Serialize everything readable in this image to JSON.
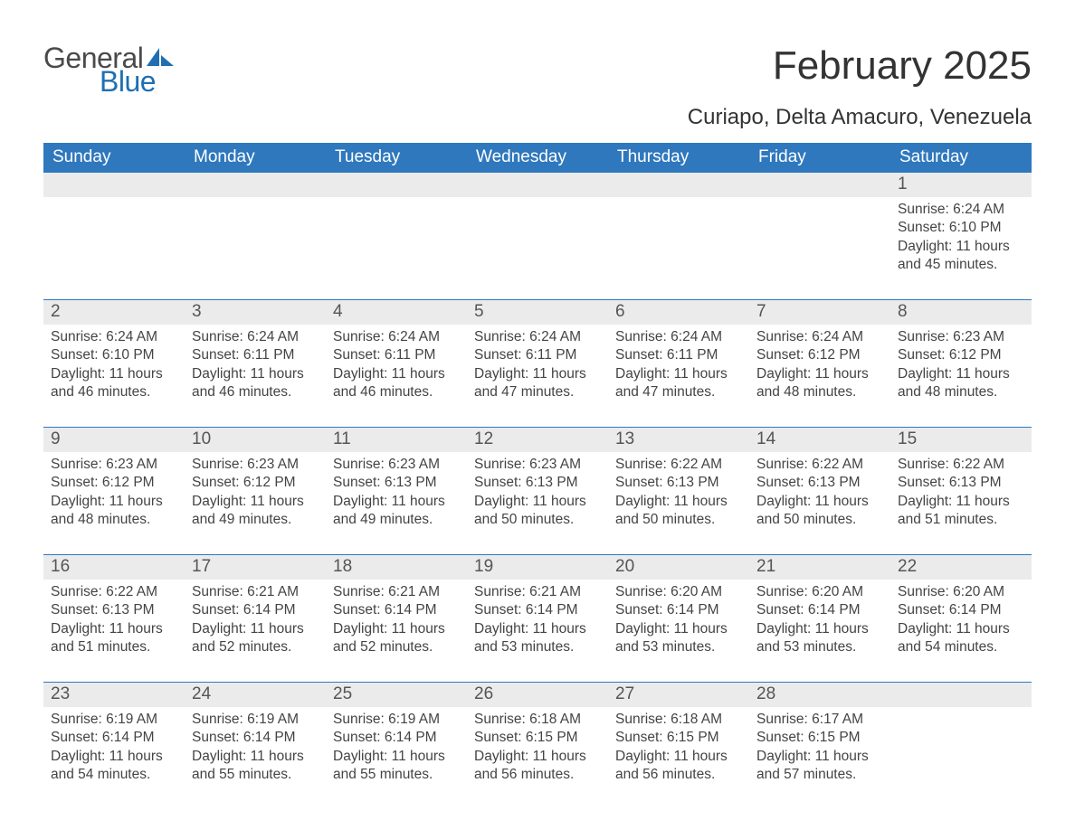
{
  "logo": {
    "word1": "General",
    "word2": "Blue",
    "word1_color": "#4a4a4a",
    "word2_color": "#1f6fb2",
    "sail_color": "#1f6fb2"
  },
  "title": "February 2025",
  "location": "Curiapo, Delta Amacuro, Venezuela",
  "colors": {
    "header_bg": "#2f78bd",
    "header_text": "#ffffff",
    "date_bar_bg": "#ebebeb",
    "date_text": "#555555",
    "body_text": "#444444",
    "page_bg": "#ffffff",
    "week_border": "#2f78bd"
  },
  "day_headers": [
    "Sunday",
    "Monday",
    "Tuesday",
    "Wednesday",
    "Thursday",
    "Friday",
    "Saturday"
  ],
  "weeks": [
    [
      {
        "date": "",
        "sunrise": "",
        "sunset": "",
        "daylight": ""
      },
      {
        "date": "",
        "sunrise": "",
        "sunset": "",
        "daylight": ""
      },
      {
        "date": "",
        "sunrise": "",
        "sunset": "",
        "daylight": ""
      },
      {
        "date": "",
        "sunrise": "",
        "sunset": "",
        "daylight": ""
      },
      {
        "date": "",
        "sunrise": "",
        "sunset": "",
        "daylight": ""
      },
      {
        "date": "",
        "sunrise": "",
        "sunset": "",
        "daylight": ""
      },
      {
        "date": "1",
        "sunrise": "Sunrise: 6:24 AM",
        "sunset": "Sunset: 6:10 PM",
        "daylight": "Daylight: 11 hours and 45 minutes."
      }
    ],
    [
      {
        "date": "2",
        "sunrise": "Sunrise: 6:24 AM",
        "sunset": "Sunset: 6:10 PM",
        "daylight": "Daylight: 11 hours and 46 minutes."
      },
      {
        "date": "3",
        "sunrise": "Sunrise: 6:24 AM",
        "sunset": "Sunset: 6:11 PM",
        "daylight": "Daylight: 11 hours and 46 minutes."
      },
      {
        "date": "4",
        "sunrise": "Sunrise: 6:24 AM",
        "sunset": "Sunset: 6:11 PM",
        "daylight": "Daylight: 11 hours and 46 minutes."
      },
      {
        "date": "5",
        "sunrise": "Sunrise: 6:24 AM",
        "sunset": "Sunset: 6:11 PM",
        "daylight": "Daylight: 11 hours and 47 minutes."
      },
      {
        "date": "6",
        "sunrise": "Sunrise: 6:24 AM",
        "sunset": "Sunset: 6:11 PM",
        "daylight": "Daylight: 11 hours and 47 minutes."
      },
      {
        "date": "7",
        "sunrise": "Sunrise: 6:24 AM",
        "sunset": "Sunset: 6:12 PM",
        "daylight": "Daylight: 11 hours and 48 minutes."
      },
      {
        "date": "8",
        "sunrise": "Sunrise: 6:23 AM",
        "sunset": "Sunset: 6:12 PM",
        "daylight": "Daylight: 11 hours and 48 minutes."
      }
    ],
    [
      {
        "date": "9",
        "sunrise": "Sunrise: 6:23 AM",
        "sunset": "Sunset: 6:12 PM",
        "daylight": "Daylight: 11 hours and 48 minutes."
      },
      {
        "date": "10",
        "sunrise": "Sunrise: 6:23 AM",
        "sunset": "Sunset: 6:12 PM",
        "daylight": "Daylight: 11 hours and 49 minutes."
      },
      {
        "date": "11",
        "sunrise": "Sunrise: 6:23 AM",
        "sunset": "Sunset: 6:13 PM",
        "daylight": "Daylight: 11 hours and 49 minutes."
      },
      {
        "date": "12",
        "sunrise": "Sunrise: 6:23 AM",
        "sunset": "Sunset: 6:13 PM",
        "daylight": "Daylight: 11 hours and 50 minutes."
      },
      {
        "date": "13",
        "sunrise": "Sunrise: 6:22 AM",
        "sunset": "Sunset: 6:13 PM",
        "daylight": "Daylight: 11 hours and 50 minutes."
      },
      {
        "date": "14",
        "sunrise": "Sunrise: 6:22 AM",
        "sunset": "Sunset: 6:13 PM",
        "daylight": "Daylight: 11 hours and 50 minutes."
      },
      {
        "date": "15",
        "sunrise": "Sunrise: 6:22 AM",
        "sunset": "Sunset: 6:13 PM",
        "daylight": "Daylight: 11 hours and 51 minutes."
      }
    ],
    [
      {
        "date": "16",
        "sunrise": "Sunrise: 6:22 AM",
        "sunset": "Sunset: 6:13 PM",
        "daylight": "Daylight: 11 hours and 51 minutes."
      },
      {
        "date": "17",
        "sunrise": "Sunrise: 6:21 AM",
        "sunset": "Sunset: 6:14 PM",
        "daylight": "Daylight: 11 hours and 52 minutes."
      },
      {
        "date": "18",
        "sunrise": "Sunrise: 6:21 AM",
        "sunset": "Sunset: 6:14 PM",
        "daylight": "Daylight: 11 hours and 52 minutes."
      },
      {
        "date": "19",
        "sunrise": "Sunrise: 6:21 AM",
        "sunset": "Sunset: 6:14 PM",
        "daylight": "Daylight: 11 hours and 53 minutes."
      },
      {
        "date": "20",
        "sunrise": "Sunrise: 6:20 AM",
        "sunset": "Sunset: 6:14 PM",
        "daylight": "Daylight: 11 hours and 53 minutes."
      },
      {
        "date": "21",
        "sunrise": "Sunrise: 6:20 AM",
        "sunset": "Sunset: 6:14 PM",
        "daylight": "Daylight: 11 hours and 53 minutes."
      },
      {
        "date": "22",
        "sunrise": "Sunrise: 6:20 AM",
        "sunset": "Sunset: 6:14 PM",
        "daylight": "Daylight: 11 hours and 54 minutes."
      }
    ],
    [
      {
        "date": "23",
        "sunrise": "Sunrise: 6:19 AM",
        "sunset": "Sunset: 6:14 PM",
        "daylight": "Daylight: 11 hours and 54 minutes."
      },
      {
        "date": "24",
        "sunrise": "Sunrise: 6:19 AM",
        "sunset": "Sunset: 6:14 PM",
        "daylight": "Daylight: 11 hours and 55 minutes."
      },
      {
        "date": "25",
        "sunrise": "Sunrise: 6:19 AM",
        "sunset": "Sunset: 6:14 PM",
        "daylight": "Daylight: 11 hours and 55 minutes."
      },
      {
        "date": "26",
        "sunrise": "Sunrise: 6:18 AM",
        "sunset": "Sunset: 6:15 PM",
        "daylight": "Daylight: 11 hours and 56 minutes."
      },
      {
        "date": "27",
        "sunrise": "Sunrise: 6:18 AM",
        "sunset": "Sunset: 6:15 PM",
        "daylight": "Daylight: 11 hours and 56 minutes."
      },
      {
        "date": "28",
        "sunrise": "Sunrise: 6:17 AM",
        "sunset": "Sunset: 6:15 PM",
        "daylight": "Daylight: 11 hours and 57 minutes."
      },
      {
        "date": "",
        "sunrise": "",
        "sunset": "",
        "daylight": ""
      }
    ]
  ]
}
